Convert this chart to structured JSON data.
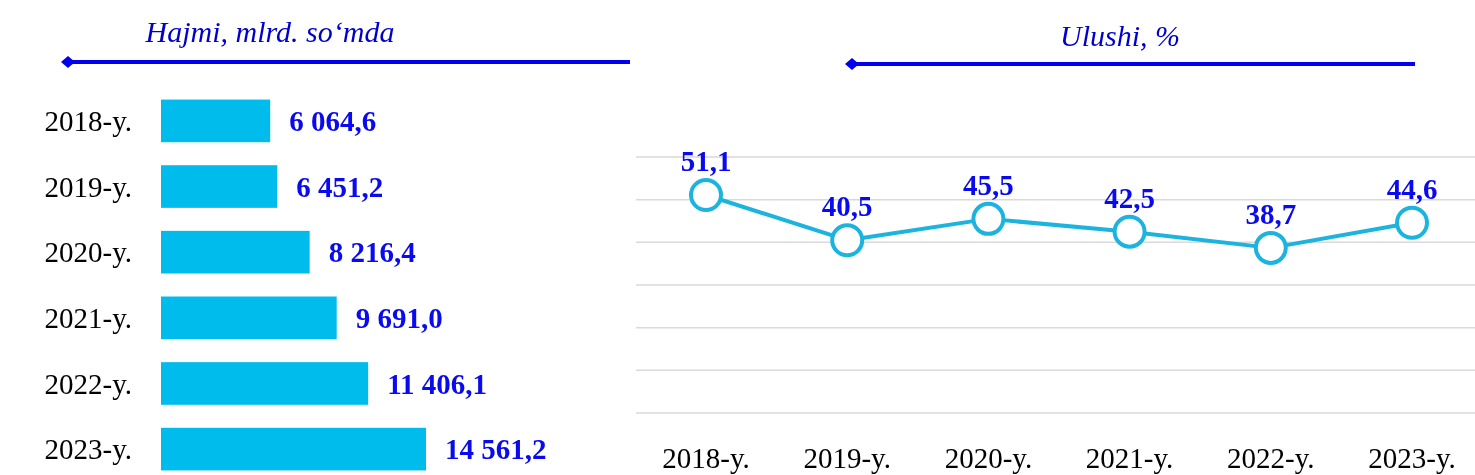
{
  "chart_data": [
    {
      "type": "bar",
      "orientation": "horizontal",
      "title": "Hajmi, mlrd. so‘mda",
      "categories": [
        "2018-y.",
        "2019-y.",
        "2020-y.",
        "2021-y.",
        "2022-y.",
        "2023-y."
      ],
      "values": [
        6064.6,
        6451.2,
        8216.4,
        9691.0,
        11406.1,
        14561.2
      ],
      "value_labels": [
        "6 064,6",
        "6 451,2",
        "8 216,4",
        "9 691,0",
        "11 406,1",
        "14 561,2"
      ],
      "color": "#00bcec",
      "tick_labels": "y"
    },
    {
      "type": "line",
      "title": "Ulushi, %",
      "categories": [
        "2018-y.",
        "2019-y.",
        "2020-y.",
        "2021-y.",
        "2022-y.",
        "2023-y."
      ],
      "values": [
        51.1,
        40.5,
        45.5,
        42.5,
        38.7,
        44.6
      ],
      "value_labels": [
        "51,1",
        "40,5",
        "45,5",
        "42,5",
        "38,7",
        "44,6"
      ],
      "color": "#1cb4de",
      "marker": "circle",
      "ylim": [
        0,
        60
      ],
      "yticks": [
        {
          "value": 0,
          "label": null
        },
        {
          "value": 10,
          "label": null
        },
        {
          "value": 20,
          "label": null
        },
        {
          "value": 30,
          "label": null
        },
        {
          "value": 40,
          "label": null
        },
        {
          "value": 50,
          "label": null
        },
        {
          "value": 60,
          "label": null
        }
      ],
      "grid": "y",
      "tick_labels": "x"
    }
  ]
}
